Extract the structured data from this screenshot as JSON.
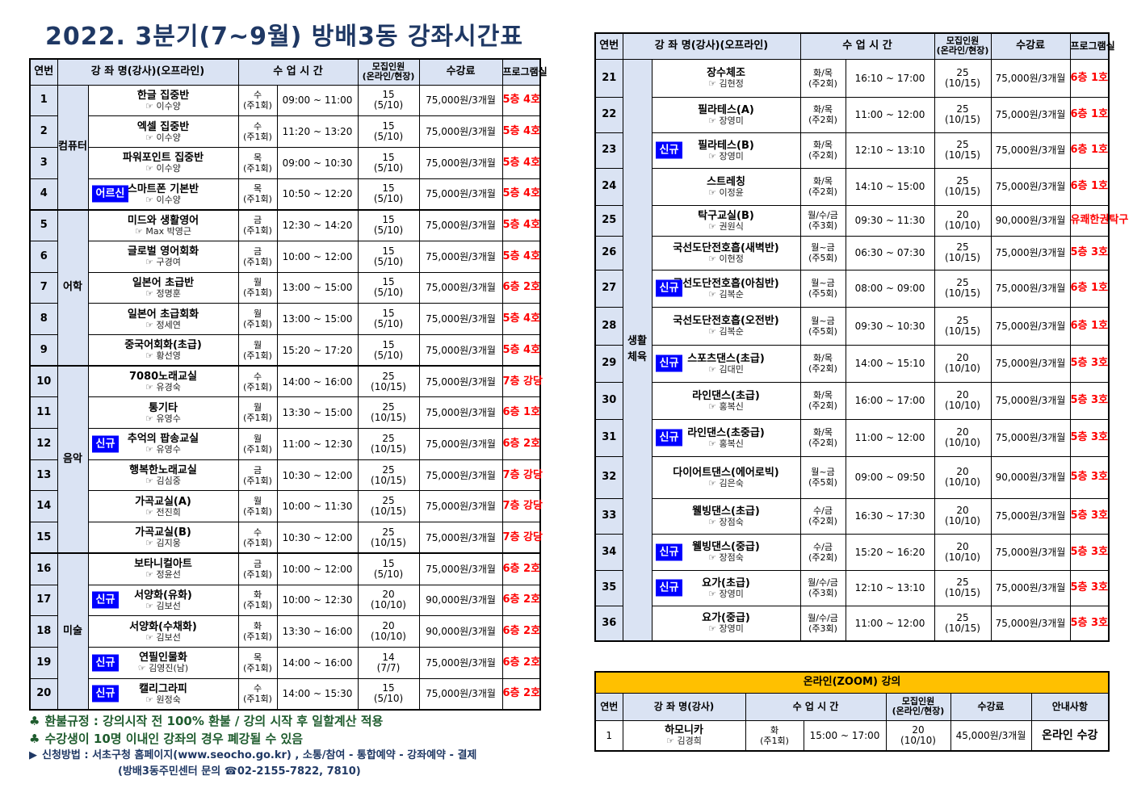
{
  "title": "2022. 3분기(7~9월) 방배3동 강좌시간표",
  "headers": {
    "no": "연번",
    "course": "강 좌 명(강사)(오프라인)",
    "time": "수 업 시 간",
    "capacity": "모집인원\n(온라인/현장)",
    "fee": "수강료",
    "room": "프로그램실"
  },
  "left_categories": [
    {
      "label": "컴퓨터",
      "rows": 4
    },
    {
      "label": "어학",
      "rows": 5
    },
    {
      "label": "음악",
      "rows": 6
    },
    {
      "label": "미술",
      "rows": 5
    }
  ],
  "left_rows": [
    {
      "no": "1",
      "badge": "",
      "name": "한글 집중반",
      "inst": "☞ 이수양",
      "day": "수",
      "freq": "(주1회)",
      "time": "09:00 ~ 11:00",
      "cap": "15",
      "cap_split": "(5/10)",
      "fee": "75,000원/3개월",
      "room": "5층 4호"
    },
    {
      "no": "2",
      "badge": "",
      "name": "엑셀 집중반",
      "inst": "☞ 이수양",
      "day": "수",
      "freq": "(주1회)",
      "time": "11:20 ~ 13:20",
      "cap": "15",
      "cap_split": "(5/10)",
      "fee": "75,000원/3개월",
      "room": "5층 4호"
    },
    {
      "no": "3",
      "badge": "",
      "name": "파워포인트 집중반",
      "inst": "☞ 이수양",
      "day": "목",
      "freq": "(주1회)",
      "time": "09:00 ~ 10:30",
      "cap": "15",
      "cap_split": "(5/10)",
      "fee": "75,000원/3개월",
      "room": "5층 4호"
    },
    {
      "no": "4",
      "badge": "어르신",
      "name": "스마트폰 기본반",
      "inst": "☞ 이수양",
      "day": "목",
      "freq": "(주1회)",
      "time": "10:50 ~ 12:20",
      "cap": "15",
      "cap_split": "(5/10)",
      "fee": "75,000원/3개월",
      "room": "5층 4호"
    },
    {
      "no": "5",
      "badge": "",
      "name": "미드와 생활영어",
      "inst": "☞ Max 박영근",
      "day": "금",
      "freq": "(주1회)",
      "time": "12:30 ~ 14:20",
      "cap": "15",
      "cap_split": "(5/10)",
      "fee": "75,000원/3개월",
      "room": "5층 4호"
    },
    {
      "no": "6",
      "badge": "",
      "name": "글로벌 영어회화",
      "inst": "☞ 구경여",
      "day": "금",
      "freq": "(주1회)",
      "time": "10:00 ~ 12:00",
      "cap": "15",
      "cap_split": "(5/10)",
      "fee": "75,000원/3개월",
      "room": "5층 4호"
    },
    {
      "no": "7",
      "badge": "",
      "name": "일본어 초급반",
      "inst": "☞ 정명훈",
      "day": "월",
      "freq": "(주1회)",
      "time": "13:00 ~ 15:00",
      "cap": "15",
      "cap_split": "(5/10)",
      "fee": "75,000원/3개월",
      "room": "6층 2호"
    },
    {
      "no": "8",
      "badge": "",
      "name": "일본어 초급회화",
      "inst": "☞ 정세연",
      "day": "월",
      "freq": "(주1회)",
      "time": "13:00 ~ 15:00",
      "cap": "15",
      "cap_split": "(5/10)",
      "fee": "75,000원/3개월",
      "room": "5층 4호"
    },
    {
      "no": "9",
      "badge": "",
      "name": "중국어회화(초급)",
      "inst": "☞ 황선영",
      "day": "월",
      "freq": "(주1회)",
      "time": "15:20 ~ 17:20",
      "cap": "15",
      "cap_split": "(5/10)",
      "fee": "75,000원/3개월",
      "room": "5층 4호"
    },
    {
      "no": "10",
      "badge": "",
      "name": "7080노래교실",
      "inst": "☞ 유경숙",
      "day": "수",
      "freq": "(주1회)",
      "time": "14:00 ~ 16:00",
      "cap": "25",
      "cap_split": "(10/15)",
      "fee": "75,000원/3개월",
      "room": "7층 강당"
    },
    {
      "no": "11",
      "badge": "",
      "name": "통기타",
      "inst": "☞ 유영수",
      "day": "월",
      "freq": "(주1회)",
      "time": "13:30 ~ 15:00",
      "cap": "25",
      "cap_split": "(10/15)",
      "fee": "75,000원/3개월",
      "room": "6층 1호"
    },
    {
      "no": "12",
      "badge": "신규",
      "name": "추억의 팝송교실",
      "inst": "☞ 유영수",
      "day": "월",
      "freq": "(주1회)",
      "time": "11:00 ~ 12:30",
      "cap": "25",
      "cap_split": "(10/15)",
      "fee": "75,000원/3개월",
      "room": "6층 2호"
    },
    {
      "no": "13",
      "badge": "",
      "name": "행복한노래교실",
      "inst": "☞ 김심중",
      "day": "금",
      "freq": "(주1회)",
      "time": "10:30 ~ 12:00",
      "cap": "25",
      "cap_split": "(10/15)",
      "fee": "75,000원/3개월",
      "room": "7층 강당"
    },
    {
      "no": "14",
      "badge": "",
      "name": "가곡교실(A)",
      "inst": "☞ 전진희",
      "day": "월",
      "freq": "(주1회)",
      "time": "10:00 ~ 11:30",
      "cap": "25",
      "cap_split": "(10/15)",
      "fee": "75,000원/3개월",
      "room": "7층 강당"
    },
    {
      "no": "15",
      "badge": "",
      "name": "가곡교실(B)",
      "inst": "☞ 김지웅",
      "day": "수",
      "freq": "(주1회)",
      "time": "10:30 ~ 12:00",
      "cap": "25",
      "cap_split": "(10/15)",
      "fee": "75,000원/3개월",
      "room": "7층 강당"
    },
    {
      "no": "16",
      "badge": "",
      "name": "보타니컬아트",
      "inst": "☞ 정윤선",
      "day": "금",
      "freq": "(주1회)",
      "time": "10:00 ~ 12:00",
      "cap": "15",
      "cap_split": "(5/10)",
      "fee": "75,000원/3개월",
      "room": "6층 2호"
    },
    {
      "no": "17",
      "badge": "신규",
      "name": "서양화(유화)",
      "inst": "☞ 김보선",
      "day": "화",
      "freq": "(주1회)",
      "time": "10:00 ~ 12:30",
      "cap": "20",
      "cap_split": "(10/10)",
      "fee": "90,000원/3개월",
      "room": "6층 2호"
    },
    {
      "no": "18",
      "badge": "",
      "name": "서양화(수채화)",
      "inst": "☞ 김보선",
      "day": "화",
      "freq": "(주1회)",
      "time": "13:30 ~ 16:00",
      "cap": "20",
      "cap_split": "(10/10)",
      "fee": "90,000원/3개월",
      "room": "6층 2호"
    },
    {
      "no": "19",
      "badge": "신규",
      "name": "연필인물화",
      "inst": "☞ 김영진(남)",
      "day": "목",
      "freq": "(주1회)",
      "time": "14:00 ~ 16:00",
      "cap": "14",
      "cap_split": "(7/7)",
      "fee": "75,000원/3개월",
      "room": "6층 2호"
    },
    {
      "no": "20",
      "badge": "신규",
      "name": "캘리그라피",
      "inst": "☞ 원정숙",
      "day": "수",
      "freq": "(주1회)",
      "time": "14:00 ~ 15:30",
      "cap": "15",
      "cap_split": "(5/10)",
      "fee": "75,000원/3개월",
      "room": "6층 2호"
    }
  ],
  "right_category": "생활\n체육",
  "right_rows": [
    {
      "no": "21",
      "badge": "",
      "name": "장수체조",
      "inst": "☞ 김현정",
      "day": "화/목",
      "freq": "(주2회)",
      "time": "16:10 ~ 17:00",
      "cap": "25",
      "cap_split": "(10/15)",
      "fee": "75,000원/3개월",
      "room": "6층 1호"
    },
    {
      "no": "22",
      "badge": "",
      "name": "필라테스(A)",
      "inst": "☞ 장영미",
      "day": "화/목",
      "freq": "(주2회)",
      "time": "11:00 ~ 12:00",
      "cap": "25",
      "cap_split": "(10/15)",
      "fee": "75,000원/3개월",
      "room": "6층 1호"
    },
    {
      "no": "23",
      "badge": "신규",
      "name": "필라테스(B)",
      "inst": "☞ 장영미",
      "day": "화/목",
      "freq": "(주2회)",
      "time": "12:10 ~ 13:10",
      "cap": "25",
      "cap_split": "(10/15)",
      "fee": "75,000원/3개월",
      "room": "6층 1호"
    },
    {
      "no": "24",
      "badge": "",
      "name": "스트레칭",
      "inst": "☞ 이정윤",
      "day": "화/목",
      "freq": "(주2회)",
      "time": "14:10 ~ 15:00",
      "cap": "25",
      "cap_split": "(10/15)",
      "fee": "75,000원/3개월",
      "room": "6층 1호"
    },
    {
      "no": "25",
      "badge": "",
      "name": "탁구교실(B)",
      "inst": "☞ 권원식",
      "day": "월/수/금",
      "freq": "(주3회)",
      "time": "09:30 ~ 11:30",
      "cap": "20",
      "cap_split": "(10/10)",
      "fee": "90,000원/3개월",
      "room": "유쾌한권탁구"
    },
    {
      "no": "26",
      "badge": "",
      "name": "국선도단전호흡(새벽반)",
      "inst": "☞ 이현정",
      "day": "월~금",
      "freq": "(주5회)",
      "time": "06:30 ~ 07:30",
      "cap": "25",
      "cap_split": "(10/15)",
      "fee": "75,000원/3개월",
      "room": "5층 3호"
    },
    {
      "no": "27",
      "badge": "신규",
      "name": "국선도단전호흡(아침반)",
      "inst": "☞ 김복순",
      "day": "월~금",
      "freq": "(주5회)",
      "time": "08:00 ~ 09:00",
      "cap": "25",
      "cap_split": "(10/15)",
      "fee": "75,000원/3개월",
      "room": "6층 1호"
    },
    {
      "no": "28",
      "badge": "",
      "name": "국선도단전호흡(오전반)",
      "inst": "☞ 김복순",
      "day": "월~금",
      "freq": "(주5회)",
      "time": "09:30 ~ 10:30",
      "cap": "25",
      "cap_split": "(10/15)",
      "fee": "75,000원/3개월",
      "room": "6층 1호"
    },
    {
      "no": "29",
      "badge": "신규",
      "name": "스포츠댄스(초급)",
      "inst": "☞ 김대민",
      "day": "화/목",
      "freq": "(주2회)",
      "time": "14:00 ~ 15:10",
      "cap": "20",
      "cap_split": "(10/10)",
      "fee": "75,000원/3개월",
      "room": "5층 3호"
    },
    {
      "no": "30",
      "badge": "",
      "name": "라인댄스(초급)",
      "inst": "☞ 홍복신",
      "day": "화/목",
      "freq": "(주2회)",
      "time": "16:00 ~ 17:00",
      "cap": "20",
      "cap_split": "(10/10)",
      "fee": "75,000원/3개월",
      "room": "5층 3호"
    },
    {
      "no": "31",
      "badge": "신규",
      "name": "라인댄스(초중급)",
      "inst": "☞ 홍복신",
      "day": "화/목",
      "freq": "(주2회)",
      "time": "11:00 ~ 12:00",
      "cap": "20",
      "cap_split": "(10/10)",
      "fee": "75,000원/3개월",
      "room": "5층 3호"
    },
    {
      "no": "32",
      "badge": "",
      "name": "다이어트댄스(에어로빅)",
      "inst": "☞ 김은숙",
      "day": "월~금",
      "freq": "(주5회)",
      "time": "09:00 ~ 09:50",
      "cap": "20",
      "cap_split": "(10/10)",
      "fee": "90,000원/3개월",
      "room": "5층 3호"
    },
    {
      "no": "33",
      "badge": "",
      "name": "웰빙댄스(초급)",
      "inst": "☞ 장점숙",
      "day": "수/금",
      "freq": "(주2회)",
      "time": "16:30 ~ 17:30",
      "cap": "20",
      "cap_split": "(10/10)",
      "fee": "75,000원/3개월",
      "room": "5층 3호"
    },
    {
      "no": "34",
      "badge": "신규",
      "name": "웰빙댄스(중급)",
      "inst": "☞ 장점숙",
      "day": "수/금",
      "freq": "(주2회)",
      "time": "15:20 ~ 16:20",
      "cap": "20",
      "cap_split": "(10/10)",
      "fee": "75,000원/3개월",
      "room": "5층 3호"
    },
    {
      "no": "35",
      "badge": "신규",
      "name": "요가(초급)",
      "inst": "☞ 장영미",
      "day": "월/수/금",
      "freq": "(주3회)",
      "time": "12:10 ~ 13:10",
      "cap": "25",
      "cap_split": "(10/15)",
      "fee": "75,000원/3개월",
      "room": "5층 3호"
    },
    {
      "no": "36",
      "badge": "",
      "name": "요가(중급)",
      "inst": "☞ 장영미",
      "day": "월/수/금",
      "freq": "(주3회)",
      "time": "11:00 ~ 12:00",
      "cap": "25",
      "cap_split": "(10/15)",
      "fee": "75,000원/3개월",
      "room": "5층 3호"
    }
  ],
  "online": {
    "title": "온라인(ZOOM) 강의",
    "headers": {
      "no": "연번",
      "course": "강 좌 명(강사)",
      "time": "수 업 시 간",
      "capacity": "모집인원\n(온라인/현장)",
      "fee": "수강료",
      "info": "안내사항"
    },
    "row": {
      "no": "1",
      "name": "하모니카",
      "inst": "☞ 김경희",
      "day": "화",
      "freq": "(주1회)",
      "time": "15:00 ~ 17:00",
      "cap": "20",
      "cap_split": "(10/10)",
      "fee": "45,000원/3개월",
      "info": "온라인 수강"
    }
  },
  "notes": {
    "refund": "환불규정 : 강의시작 전 100% 환불 / 강의 시작 후 일할계산 적용",
    "closure": "수강생이 10명 이내인 강좌의 경우 폐강될 수 있음",
    "apply": "신청방법 : 서초구청 홈페이지(www.seocho.go.kr) , 소통/참여 - 통합예약 - 강좌예약 - 결제",
    "contact": "(방배3동주민센터 문의 ☎02-2155-7822, 7810)",
    "club_symbol": "♣",
    "arrow_symbol": "▶"
  }
}
